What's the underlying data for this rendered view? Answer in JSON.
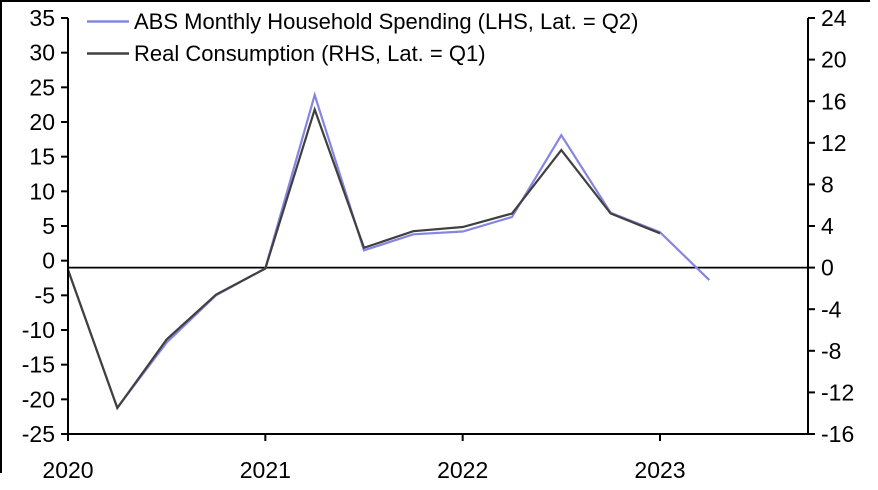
{
  "chart_data": {
    "type": "line",
    "title": "",
    "xlabel": "",
    "ylabel_left": "",
    "ylabel_right": "",
    "xlim": [
      2020,
      2023.75
    ],
    "x_ticks": [
      2020,
      2021,
      2022,
      2023
    ],
    "x_tick_labels": [
      "2020",
      "2021",
      "2022",
      "2023"
    ],
    "lhs_axis": {
      "ylim": [
        -25,
        35
      ],
      "ticks": [
        35,
        30,
        25,
        20,
        15,
        10,
        5,
        0,
        -5,
        -10,
        -15,
        -20,
        -25
      ]
    },
    "rhs_axis": {
      "ylim": [
        -16,
        24
      ],
      "ticks": [
        24,
        20,
        16,
        12,
        8,
        4,
        0,
        -4,
        -8,
        -12,
        -16
      ]
    },
    "zero_line": true,
    "grid": false,
    "legend_position": "top-left",
    "axis_color": "#000000",
    "series": [
      {
        "name": "ABS Monthly Household Spending (LHS, Lat. = Q2)",
        "axis": "lhs",
        "color": "#8585e2",
        "x": [
          2020.0,
          2020.25,
          2020.5,
          2020.75,
          2021.0,
          2021.25,
          2021.5,
          2021.75,
          2022.0,
          2022.25,
          2022.5,
          2022.75,
          2023.0,
          2023.25
        ],
        "values": [
          -1.3,
          -21.2,
          -11.8,
          -5.0,
          -1.1,
          23.9,
          1.5,
          3.8,
          4.2,
          6.3,
          18.1,
          6.9,
          4.1,
          -2.8
        ]
      },
      {
        "name": "Real Consumption (RHS, Lat. = Q1)",
        "axis": "rhs",
        "color": "#404040",
        "x": [
          2020.0,
          2020.25,
          2020.5,
          2020.75,
          2021.0,
          2021.25,
          2021.5,
          2021.75,
          2022.0,
          2022.25,
          2022.5,
          2022.75,
          2023.0
        ],
        "values": [
          -0.2,
          -13.5,
          -6.9,
          -2.6,
          -0.1,
          15.2,
          1.9,
          3.5,
          3.9,
          5.2,
          11.3,
          5.2,
          3.3
        ]
      }
    ]
  }
}
